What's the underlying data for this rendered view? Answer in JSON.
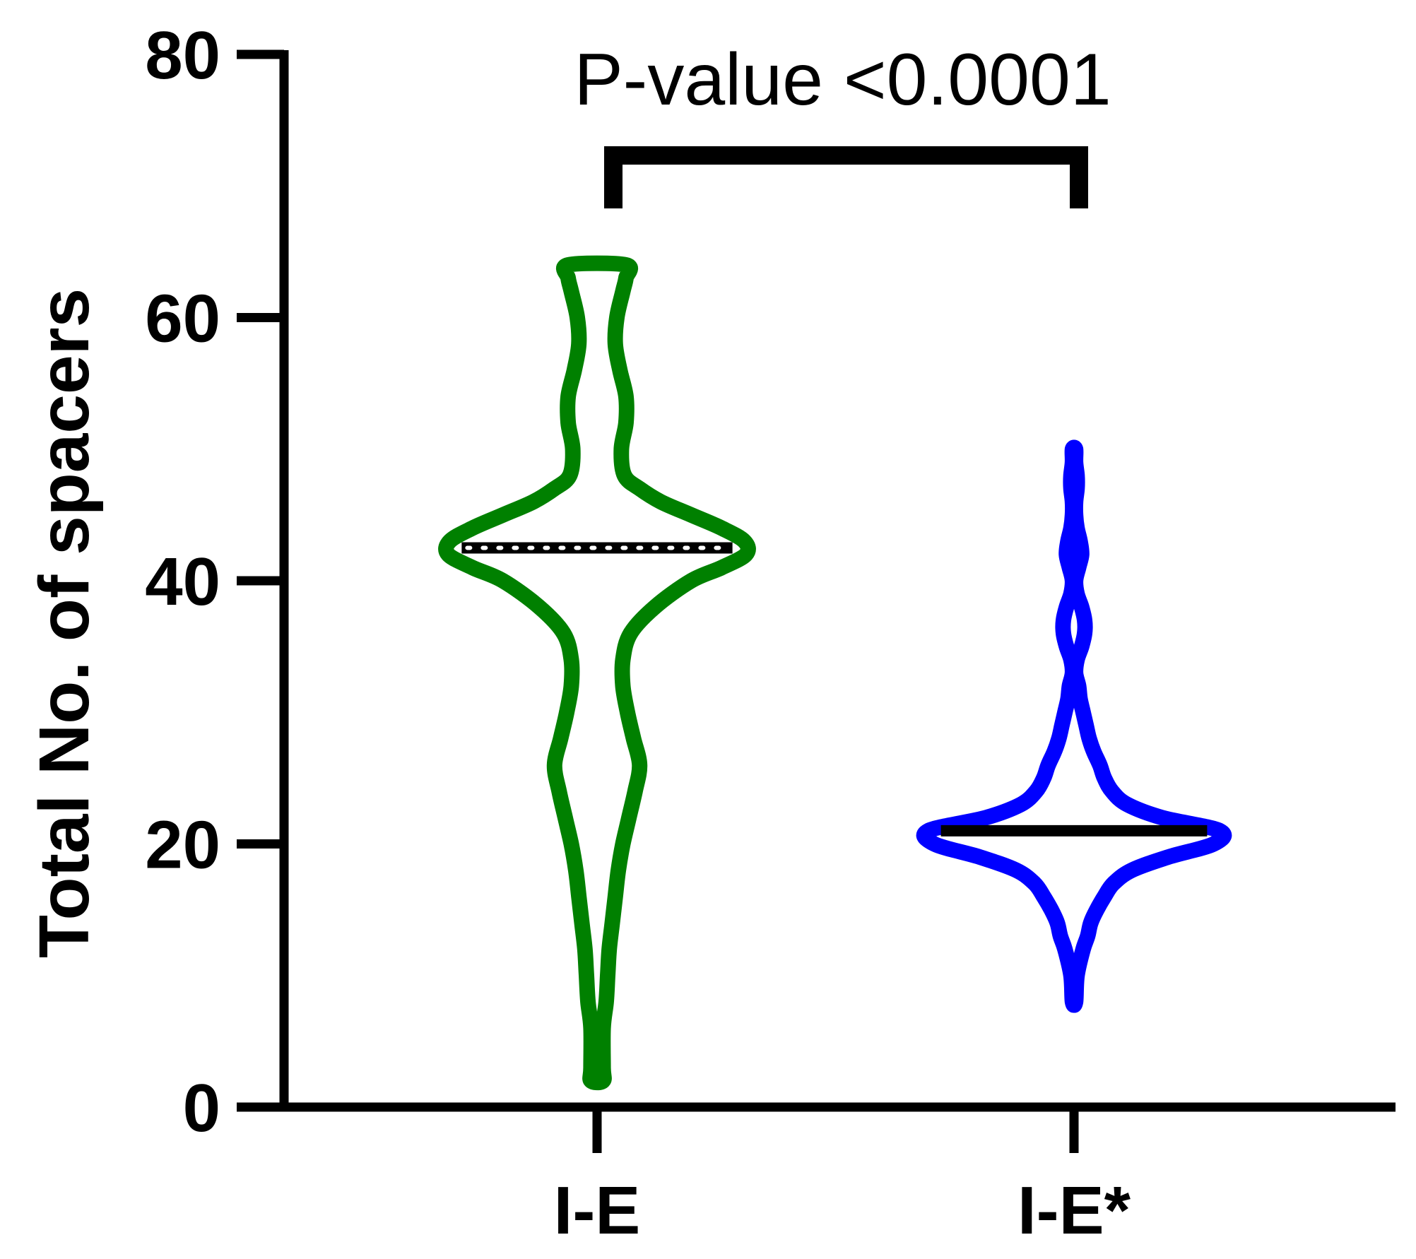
{
  "chart_data": {
    "type": "violin",
    "title": "",
    "xlabel": "",
    "ylabel": "Total No. of spacers",
    "ylim": [
      0,
      80
    ],
    "yticks": [
      "0",
      "20",
      "40",
      "60",
      "80"
    ],
    "grid": false,
    "categories": [
      "I-E",
      "I-E*"
    ],
    "series": [
      {
        "color": "#008000",
        "median": 42.5,
        "median_style": "dotted",
        "min": 2,
        "max": 64,
        "width_profile": [
          [
            2,
            0.04
          ],
          [
            3,
            0.04
          ],
          [
            6,
            0.04
          ],
          [
            8,
            0.06
          ],
          [
            10,
            0.07
          ],
          [
            12,
            0.08
          ],
          [
            14,
            0.1
          ],
          [
            16,
            0.12
          ],
          [
            18,
            0.14
          ],
          [
            20,
            0.17
          ],
          [
            22,
            0.21
          ],
          [
            24,
            0.25
          ],
          [
            26,
            0.28
          ],
          [
            28,
            0.24
          ],
          [
            30,
            0.2
          ],
          [
            32,
            0.17
          ],
          [
            34,
            0.17
          ],
          [
            36,
            0.22
          ],
          [
            38,
            0.38
          ],
          [
            40,
            0.62
          ],
          [
            41,
            0.82
          ],
          [
            42,
            0.98
          ],
          [
            43,
            0.97
          ],
          [
            44,
            0.82
          ],
          [
            45,
            0.62
          ],
          [
            46,
            0.42
          ],
          [
            47,
            0.28
          ],
          [
            48,
            0.18
          ],
          [
            50,
            0.16
          ],
          [
            52,
            0.19
          ],
          [
            54,
            0.19
          ],
          [
            56,
            0.15
          ],
          [
            58,
            0.12
          ],
          [
            60,
            0.13
          ],
          [
            62,
            0.17
          ],
          [
            63,
            0.19
          ],
          [
            64,
            0.19
          ]
        ]
      },
      {
        "color": "#0000ff",
        "median": 21,
        "median_style": "solid",
        "min": 8,
        "max": 50,
        "width_profile": [
          [
            8,
            0.01
          ],
          [
            10,
            0.02
          ],
          [
            12,
            0.06
          ],
          [
            13,
            0.09
          ],
          [
            14,
            0.11
          ],
          [
            15,
            0.15
          ],
          [
            16,
            0.2
          ],
          [
            17,
            0.26
          ],
          [
            18,
            0.38
          ],
          [
            19,
            0.62
          ],
          [
            20,
            0.92
          ],
          [
            21,
            0.96
          ],
          [
            22,
            0.58
          ],
          [
            23,
            0.35
          ],
          [
            24,
            0.25
          ],
          [
            25,
            0.2
          ],
          [
            26,
            0.17
          ],
          [
            27,
            0.13
          ],
          [
            28,
            0.1
          ],
          [
            29,
            0.08
          ],
          [
            30,
            0.06
          ],
          [
            31,
            0.04
          ],
          [
            32,
            0.03
          ],
          [
            33,
            0.01
          ],
          [
            34,
            0.02
          ],
          [
            35,
            0.05
          ],
          [
            36,
            0.07
          ],
          [
            37,
            0.07
          ],
          [
            38,
            0.05
          ],
          [
            39,
            0.02
          ],
          [
            40,
            0.01
          ],
          [
            41,
            0.03
          ],
          [
            42,
            0.05
          ],
          [
            43,
            0.04
          ],
          [
            44,
            0.02
          ],
          [
            45,
            0.01
          ],
          [
            46,
            0.01
          ],
          [
            47,
            0.02
          ],
          [
            48,
            0.02
          ],
          [
            49,
            0.01
          ],
          [
            50,
            0.01
          ]
        ]
      }
    ],
    "annotations": [
      {
        "text": "P-value <0.0001",
        "type": "significance-bracket",
        "between": [
          "I-E",
          "I-E*"
        ]
      }
    ]
  }
}
